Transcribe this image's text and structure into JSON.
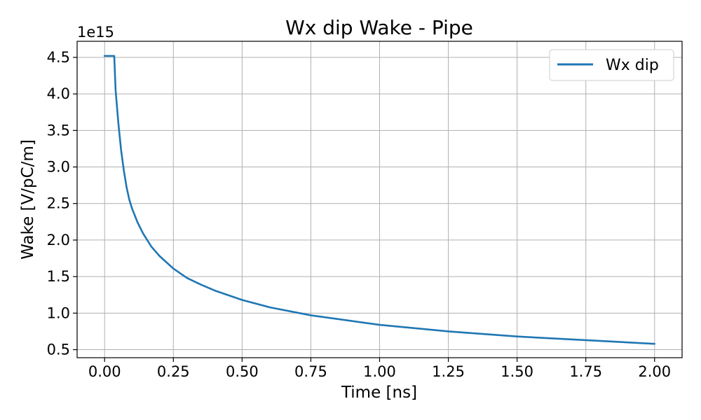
{
  "chart_data": {
    "type": "line",
    "title": "Wx dip Wake - Pipe",
    "xlabel": "Time [ns]",
    "ylabel": "Wake [V/pC/m]",
    "y_multiplier_label": "1e15",
    "y_scale_factor": 1000000000000000.0,
    "xlim": [
      -0.1,
      2.1
    ],
    "ylim": [
      0.39,
      4.72
    ],
    "xticks": [
      0.0,
      0.25,
      0.5,
      0.75,
      1.0,
      1.25,
      1.5,
      1.75,
      2.0
    ],
    "xtick_labels": [
      "0.00",
      "0.25",
      "0.50",
      "0.75",
      "1.00",
      "1.25",
      "1.50",
      "1.75",
      "2.00"
    ],
    "yticks": [
      0.5,
      1.0,
      1.5,
      2.0,
      2.5,
      3.0,
      3.5,
      4.0,
      4.5
    ],
    "ytick_labels": [
      "0.5",
      "1.0",
      "1.5",
      "2.0",
      "2.5",
      "3.0",
      "3.5",
      "4.0",
      "4.5"
    ],
    "grid": true,
    "legend_position": "top-right",
    "series": [
      {
        "name": "Wx dip",
        "color": "#1f77b4",
        "x": [
          0.0,
          0.01,
          0.02,
          0.03,
          0.035,
          0.04,
          0.05,
          0.06,
          0.07,
          0.08,
          0.09,
          0.1,
          0.12,
          0.14,
          0.17,
          0.2,
          0.25,
          0.3,
          0.35,
          0.4,
          0.5,
          0.6,
          0.75,
          1.0,
          1.25,
          1.5,
          1.75,
          2.0
        ],
        "values": [
          4.52,
          4.52,
          4.52,
          4.52,
          4.52,
          4.05,
          3.6,
          3.23,
          2.95,
          2.72,
          2.55,
          2.43,
          2.24,
          2.09,
          1.91,
          1.78,
          1.61,
          1.48,
          1.39,
          1.31,
          1.18,
          1.08,
          0.97,
          0.84,
          0.75,
          0.68,
          0.63,
          0.58
        ]
      }
    ]
  }
}
